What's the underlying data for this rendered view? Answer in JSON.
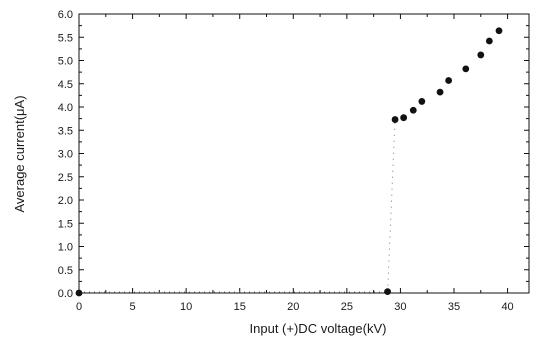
{
  "chart_data": {
    "type": "scatter",
    "xlabel": "Input (+)DC voltage(kV)",
    "ylabel": "Average current(μA)",
    "xlim": [
      0,
      42
    ],
    "ylim": [
      0,
      6.0
    ],
    "x_ticks": [
      0,
      5,
      10,
      15,
      20,
      25,
      30,
      35,
      40
    ],
    "x_tick_labels": [
      "0",
      "5",
      "10",
      "15",
      "20",
      "25",
      "30",
      "35",
      "40"
    ],
    "y_ticks": [
      0,
      0.5,
      1.0,
      1.5,
      2.0,
      2.5,
      3.0,
      3.5,
      4.0,
      4.5,
      5.0,
      5.5,
      6.0
    ],
    "y_tick_labels": [
      "0.0",
      "0.5",
      "1.0",
      "1.5",
      "2.0",
      "2.5",
      "3.0",
      "3.5",
      "4.0",
      "4.5",
      "5.0",
      "5.5",
      "6.0"
    ],
    "grid": false,
    "series": [
      {
        "x": [
          0,
          28.8,
          29.5,
          30.3,
          31.2,
          32.0,
          33.7,
          34.5,
          36.1,
          37.5,
          38.3,
          39.2
        ],
        "y": [
          0.0,
          0.03,
          3.73,
          3.77,
          3.93,
          4.12,
          4.32,
          4.57,
          4.82,
          5.12,
          5.42,
          5.64
        ]
      }
    ],
    "colors": {
      "marker": "#111111",
      "axis": "#111111",
      "dotted_line": "#777777"
    }
  }
}
